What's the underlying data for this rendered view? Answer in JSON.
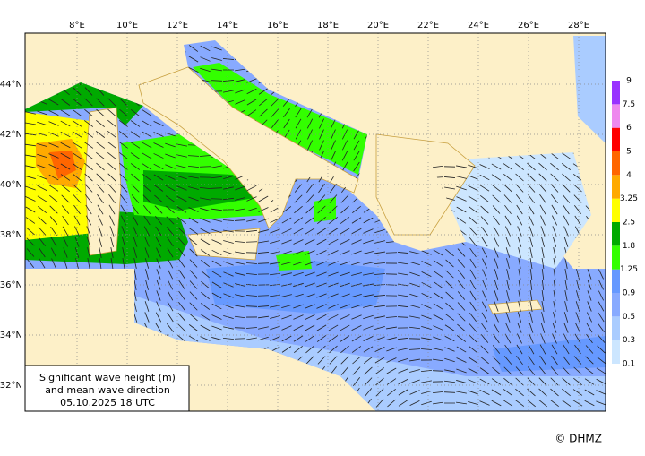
{
  "map": {
    "lon_labels": [
      "8°E",
      "10°E",
      "12°E",
      "14°E",
      "16°E",
      "18°E",
      "20°E",
      "22°E",
      "24°E",
      "26°E",
      "28°E"
    ],
    "lat_labels": [
      "44°N",
      "42°N",
      "40°N",
      "38°N",
      "36°N",
      "34°N",
      "32°N"
    ],
    "title_lines": [
      "Significant wave height (m)",
      "and mean wave direction",
      "05.10.2025 18  UTC"
    ],
    "credit": "© DHMZ"
  },
  "legend": {
    "levels": [
      0.1,
      0.3,
      0.5,
      0.9,
      1.25,
      1.8,
      2.5,
      3.25,
      4,
      5,
      6,
      7.5,
      9
    ],
    "colors": [
      "#cce6ff",
      "#aaccff",
      "#88aaff",
      "#6699ff",
      "#33ff00",
      "#00aa00",
      "#ffff00",
      "#ffaa00",
      "#ff6600",
      "#ff0000",
      "#ee88ee",
      "#9933ff"
    ]
  }
}
